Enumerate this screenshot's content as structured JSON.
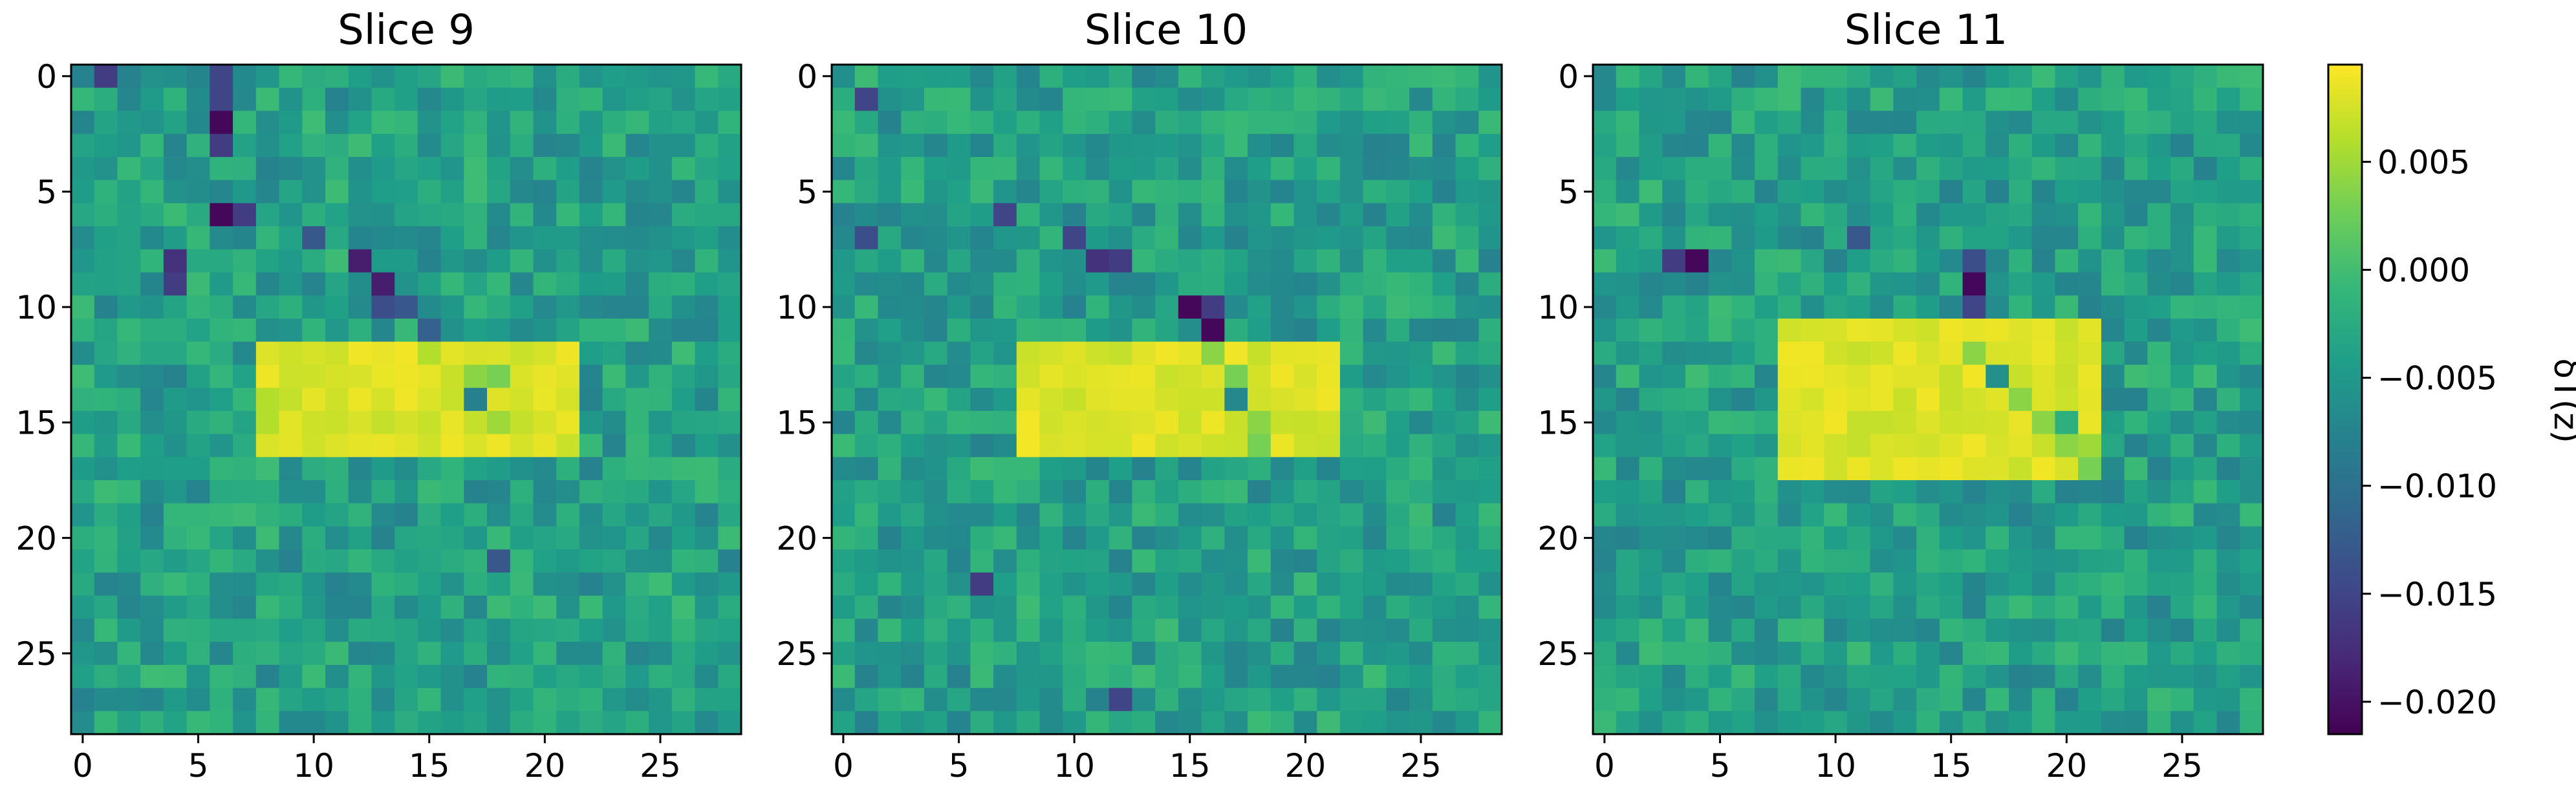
{
  "chart_data": [
    {
      "type": "heatmap",
      "title": "Slice 9",
      "grid_size": [
        29,
        29
      ],
      "xticks": [
        "0",
        "5",
        "10",
        "15",
        "20",
        "25"
      ],
      "yticks": [
        "0",
        "5",
        "10",
        "15",
        "20",
        "25"
      ],
      "background_value": -0.004,
      "high_block": {
        "rows": [
          12,
          16
        ],
        "cols": [
          8,
          21
        ],
        "value": 0.009
      },
      "anomalies": [
        {
          "row": 2,
          "col": 6,
          "value": -0.021
        },
        {
          "row": 6,
          "col": 6,
          "value": -0.021
        },
        {
          "row": 6,
          "col": 7,
          "value": -0.016
        },
        {
          "row": 1,
          "col": 6,
          "value": -0.015
        },
        {
          "row": 0,
          "col": 1,
          "value": -0.016
        },
        {
          "row": 0,
          "col": 6,
          "value": -0.015
        },
        {
          "row": 3,
          "col": 6,
          "value": -0.016
        },
        {
          "row": 8,
          "col": 4,
          "value": -0.017
        },
        {
          "row": 9,
          "col": 4,
          "value": -0.016
        },
        {
          "row": 8,
          "col": 12,
          "value": -0.019
        },
        {
          "row": 9,
          "col": 13,
          "value": -0.019
        },
        {
          "row": 10,
          "col": 13,
          "value": -0.014
        },
        {
          "row": 10,
          "col": 14,
          "value": -0.013
        },
        {
          "row": 11,
          "col": 15,
          "value": -0.012
        },
        {
          "row": 7,
          "col": 10,
          "value": -0.013
        },
        {
          "row": 14,
          "col": 17,
          "value": -0.008
        },
        {
          "row": 13,
          "col": 18,
          "value": 0.003
        },
        {
          "row": 13,
          "col": 17,
          "value": 0.004
        },
        {
          "row": 15,
          "col": 18,
          "value": 0.005
        },
        {
          "row": 21,
          "col": 18,
          "value": -0.013
        },
        {
          "row": 12,
          "col": 15,
          "value": 0.006
        },
        {
          "row": 14,
          "col": 8,
          "value": 0.006
        },
        {
          "row": 15,
          "col": 8,
          "value": 0.006
        }
      ]
    },
    {
      "type": "heatmap",
      "title": "Slice 10",
      "grid_size": [
        29,
        29
      ],
      "xticks": [
        "0",
        "5",
        "10",
        "15",
        "20",
        "25"
      ],
      "yticks": [
        "0",
        "5",
        "10",
        "15",
        "20",
        "25"
      ],
      "background_value": -0.004,
      "high_block": {
        "rows": [
          12,
          16
        ],
        "cols": [
          8,
          21
        ],
        "value": 0.009
      },
      "anomalies": [
        {
          "row": 10,
          "col": 15,
          "value": -0.021
        },
        {
          "row": 11,
          "col": 16,
          "value": -0.021
        },
        {
          "row": 10,
          "col": 16,
          "value": -0.016
        },
        {
          "row": 8,
          "col": 11,
          "value": -0.017
        },
        {
          "row": 8,
          "col": 12,
          "value": -0.016
        },
        {
          "row": 7,
          "col": 10,
          "value": -0.015
        },
        {
          "row": 1,
          "col": 1,
          "value": -0.015
        },
        {
          "row": 6,
          "col": 7,
          "value": -0.015
        },
        {
          "row": 7,
          "col": 1,
          "value": -0.014
        },
        {
          "row": 22,
          "col": 6,
          "value": -0.016
        },
        {
          "row": 27,
          "col": 12,
          "value": -0.015
        },
        {
          "row": 13,
          "col": 17,
          "value": 0.003
        },
        {
          "row": 14,
          "col": 17,
          "value": -0.007
        },
        {
          "row": 15,
          "col": 18,
          "value": 0.004
        },
        {
          "row": 12,
          "col": 16,
          "value": 0.004
        },
        {
          "row": 16,
          "col": 18,
          "value": 0.003
        }
      ]
    },
    {
      "type": "heatmap",
      "title": "Slice 11",
      "grid_size": [
        29,
        29
      ],
      "xticks": [
        "0",
        "5",
        "10",
        "15",
        "20",
        "25"
      ],
      "yticks": [
        "0",
        "5",
        "10",
        "15",
        "20",
        "25"
      ],
      "background_value": -0.004,
      "high_block": {
        "rows": [
          11,
          17
        ],
        "cols": [
          8,
          21
        ],
        "value": 0.009
      },
      "anomalies": [
        {
          "row": 8,
          "col": 4,
          "value": -0.021
        },
        {
          "row": 9,
          "col": 16,
          "value": -0.021
        },
        {
          "row": 8,
          "col": 3,
          "value": -0.016
        },
        {
          "row": 10,
          "col": 16,
          "value": -0.015
        },
        {
          "row": 8,
          "col": 16,
          "value": -0.014
        },
        {
          "row": 7,
          "col": 11,
          "value": -0.013
        },
        {
          "row": 13,
          "col": 17,
          "value": -0.006
        },
        {
          "row": 12,
          "col": 16,
          "value": 0.004
        },
        {
          "row": 14,
          "col": 18,
          "value": 0.004
        },
        {
          "row": 15,
          "col": 19,
          "value": 0.004
        },
        {
          "row": 16,
          "col": 20,
          "value": 0.004
        },
        {
          "row": 16,
          "col": 21,
          "value": 0.005
        },
        {
          "row": 15,
          "col": 20,
          "value": -0.002
        },
        {
          "row": 17,
          "col": 21,
          "value": 0.003
        }
      ]
    }
  ],
  "colorbar": {
    "colormap": "viridis",
    "label": "δT(z)",
    "vmin": -0.0215,
    "vmax": 0.0095,
    "ticks": [
      0.005,
      0.0,
      -0.005,
      -0.01,
      -0.015,
      -0.02
    ],
    "tick_labels": [
      "0.005",
      "0.000",
      "−0.005",
      "−0.010",
      "−0.015",
      "−0.020"
    ]
  },
  "colors": {
    "viridis_stops": [
      "#440154",
      "#482878",
      "#3e4989",
      "#31688e",
      "#26828e",
      "#1f9e89",
      "#35b779",
      "#6ece58",
      "#b5de2b",
      "#fde725"
    ]
  }
}
